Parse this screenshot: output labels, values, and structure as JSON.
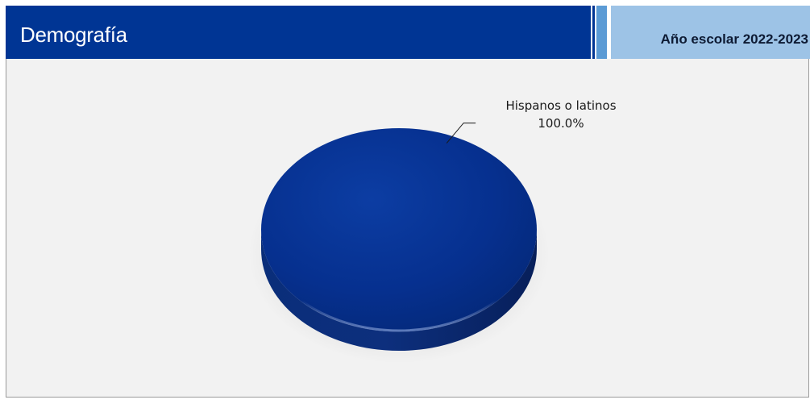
{
  "header": {
    "title": "Demografía",
    "year_label": "Año escolar 2022-2023"
  },
  "colors": {
    "header_dark": "#003594",
    "header_accent": "#5b9bd5",
    "header_light": "#9dc3e6",
    "slice_main": "#06308f",
    "panel_bg": "#f2f2f2"
  },
  "chart_data": {
    "type": "pie",
    "title": "",
    "legend": "none",
    "style": "3d",
    "slices": [
      {
        "label": "Hispanos o latinos",
        "value": 100.0,
        "display": "100.0%"
      }
    ]
  }
}
